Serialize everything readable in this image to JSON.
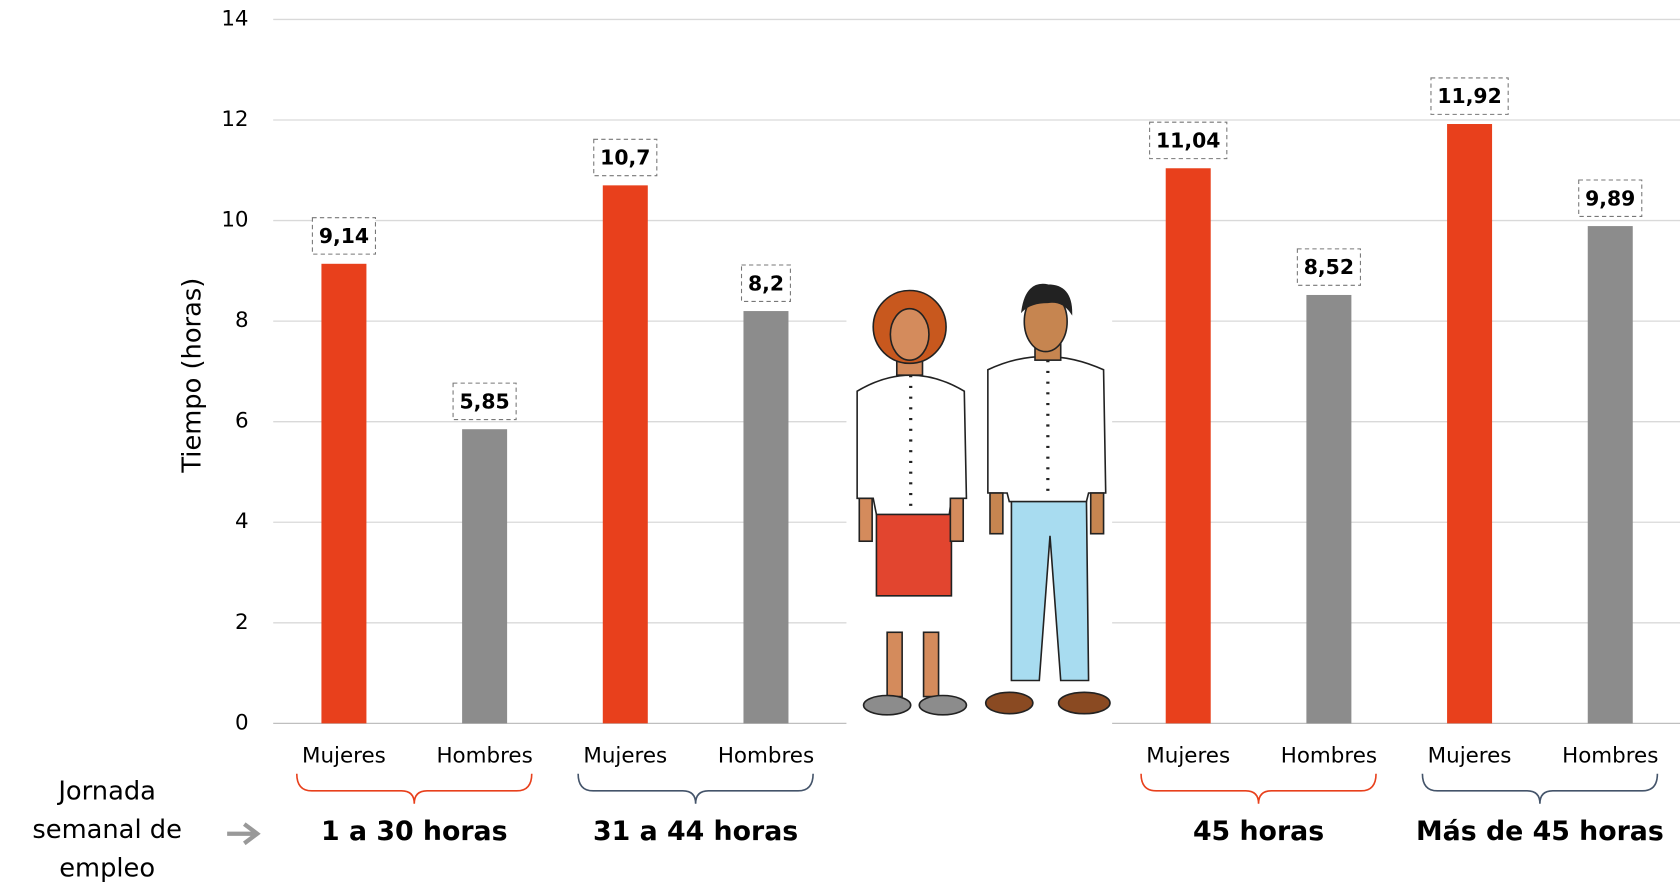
{
  "chart_data": {
    "type": "bar",
    "y_label": "Tiempo (horas)",
    "x_note": "Jornada semanal de empleo",
    "categories": [
      "Mujeres",
      "Hombres",
      "Mujeres",
      "Hombres",
      "Mujeres",
      "Hombres",
      "Mujeres",
      "Hombres"
    ],
    "values": [
      9.14,
      5.85,
      10.7,
      8.2,
      11.04,
      8.52,
      11.92,
      9.89
    ],
    "value_labels": [
      "9,14",
      "5,85",
      "10,7",
      "8,2",
      "11,04",
      "8,52",
      "11,92",
      "9,89"
    ],
    "colors": [
      "#e8401c",
      "#8c8c8c",
      "#e8401c",
      "#8c8c8c",
      "#e8401c",
      "#8c8c8c",
      "#e8401c",
      "#8c8c8c"
    ],
    "groups": [
      {
        "name": "1 a 30 horas",
        "color": "#e8401c"
      },
      {
        "name": "31 a 44 horas",
        "color": "#44546a"
      },
      {
        "name": "45 horas",
        "color": "#e8401c"
      },
      {
        "name": "Más de 45 horas",
        "color": "#44546a"
      }
    ],
    "ylim": [
      0,
      14
    ],
    "yticks": [
      0,
      2,
      4,
      6,
      8,
      10,
      12,
      14
    ],
    "grid": true
  }
}
